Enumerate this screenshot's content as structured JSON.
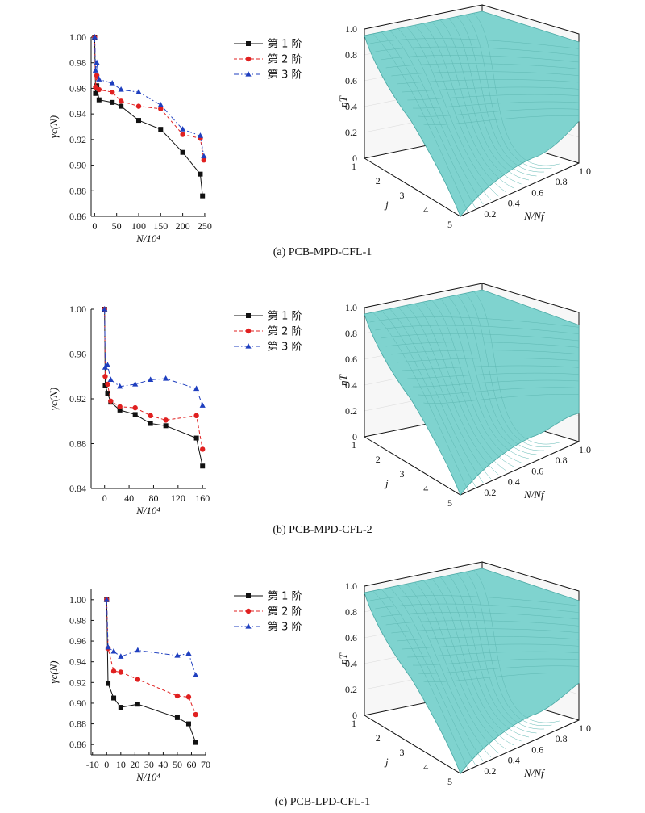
{
  "figure": {
    "panels": [
      {
        "caption": "(a) PCB-MPD-CFL-1",
        "line_chart": {
          "type": "line",
          "ylabel": "γc(N)",
          "xlabel": "N/10⁴",
          "xlim": [
            -8,
            252
          ],
          "ylim": [
            0.86,
            1.0
          ],
          "xticks": [
            0,
            50,
            100,
            150,
            200,
            250
          ],
          "yticks": [
            0.86,
            0.88,
            0.9,
            0.92,
            0.94,
            0.96,
            0.98,
            1.0
          ],
          "ytick_labels": [
            "0.86",
            "0.88",
            "0.90",
            "0.92",
            "0.94",
            "0.96",
            "0.98",
            "1.00"
          ],
          "legend_position": "top-right",
          "series": [
            {
              "name": "第 1 阶",
              "color": "#111111",
              "marker": "square",
              "dash": "solid",
              "x": [
                0,
                2,
                5,
                10,
                40,
                60,
                100,
                150,
                200,
                240,
                245
              ],
              "y": [
                1.0,
                0.956,
                0.962,
                0.951,
                0.949,
                0.946,
                0.935,
                0.928,
                0.91,
                0.893,
                0.876
              ]
            },
            {
              "name": "第 2 阶",
              "color": "#e02020",
              "marker": "circle",
              "dash": "dashed",
              "x": [
                0,
                2,
                5,
                10,
                40,
                60,
                100,
                150,
                200,
                240,
                248
              ],
              "y": [
                1.0,
                0.961,
                0.97,
                0.959,
                0.957,
                0.95,
                0.946,
                0.944,
                0.924,
                0.921,
                0.904
              ]
            },
            {
              "name": "第 3 阶",
              "color": "#1f3fbf",
              "marker": "triangle",
              "dash": "dashdot",
              "x": [
                0,
                2,
                5,
                10,
                40,
                60,
                100,
                150,
                200,
                240,
                248
              ],
              "y": [
                1.0,
                0.974,
                0.98,
                0.967,
                0.964,
                0.959,
                0.957,
                0.947,
                0.928,
                0.923,
                0.907
              ]
            }
          ]
        },
        "surface_chart": {
          "type": "surface",
          "zlabel": "ηT",
          "xlabel": "N/Nf",
          "ylabel": "j",
          "variant": 1
        }
      },
      {
        "caption": "(b) PCB-MPD-CFL-2",
        "line_chart": {
          "type": "line",
          "ylabel": "γc(N)",
          "xlabel": "N/10⁴",
          "xlim": [
            -22,
            165
          ],
          "ylim": [
            0.84,
            1.0
          ],
          "xticks": [
            0,
            40,
            80,
            120,
            160
          ],
          "yticks": [
            0.84,
            0.88,
            0.92,
            0.96,
            1.0
          ],
          "ytick_labels": [
            "0.84",
            "0.88",
            "0.92",
            "0.96",
            "1.00"
          ],
          "legend_position": "top-right",
          "series": [
            {
              "name": "第 1 阶",
              "color": "#111111",
              "marker": "square",
              "dash": "solid",
              "x": [
                0,
                1,
                5,
                10,
                25,
                50,
                75,
                100,
                150,
                160
              ],
              "y": [
                1.0,
                0.932,
                0.925,
                0.917,
                0.91,
                0.906,
                0.898,
                0.896,
                0.885,
                0.86
              ]
            },
            {
              "name": "第 2 阶",
              "color": "#e02020",
              "marker": "circle",
              "dash": "dashed",
              "x": [
                0,
                1,
                5,
                10,
                25,
                50,
                75,
                100,
                150,
                160
              ],
              "y": [
                1.0,
                0.94,
                0.933,
                0.918,
                0.913,
                0.912,
                0.905,
                0.901,
                0.905,
                0.875
              ]
            },
            {
              "name": "第 3 阶",
              "color": "#1f3fbf",
              "marker": "triangle",
              "dash": "dashdot",
              "x": [
                0,
                1,
                5,
                10,
                25,
                50,
                75,
                100,
                150,
                160
              ],
              "y": [
                1.0,
                0.948,
                0.95,
                0.937,
                0.931,
                0.933,
                0.937,
                0.938,
                0.929,
                0.914
              ]
            }
          ]
        },
        "surface_chart": {
          "type": "surface",
          "zlabel": "ηT",
          "xlabel": "N/Nf",
          "ylabel": "j",
          "variant": 2
        }
      },
      {
        "caption": "(c) PCB-LPD-CFL-1",
        "line_chart": {
          "type": "line",
          "ylabel": "γc(N)",
          "xlabel": "N/10⁴",
          "xlim": [
            -11,
            70
          ],
          "ylim": [
            0.85,
            1.01
          ],
          "xticks": [
            -10,
            0,
            10,
            20,
            30,
            40,
            50,
            60,
            70
          ],
          "yticks": [
            0.86,
            0.88,
            0.9,
            0.92,
            0.94,
            0.96,
            0.98,
            1.0
          ],
          "ytick_labels": [
            "0.86",
            "0.88",
            "0.90",
            "0.92",
            "0.94",
            "0.96",
            "0.98",
            "1.00"
          ],
          "legend_position": "top-right",
          "series": [
            {
              "name": "第 1 阶",
              "color": "#111111",
              "marker": "square",
              "dash": "solid",
              "x": [
                0,
                1,
                5,
                10,
                22,
                50,
                58,
                63
              ],
              "y": [
                1.0,
                0.919,
                0.905,
                0.896,
                0.899,
                0.886,
                0.88,
                0.862
              ]
            },
            {
              "name": "第 2 阶",
              "color": "#e02020",
              "marker": "circle",
              "dash": "dashed",
              "x": [
                0,
                1,
                5,
                10,
                22,
                50,
                58,
                63
              ],
              "y": [
                1.0,
                0.953,
                0.931,
                0.93,
                0.923,
                0.907,
                0.906,
                0.889
              ]
            },
            {
              "name": "第 3 阶",
              "color": "#1f3fbf",
              "marker": "triangle",
              "dash": "dashdot",
              "x": [
                0,
                1,
                5,
                10,
                22,
                50,
                58,
                63
              ],
              "y": [
                1.0,
                0.954,
                0.95,
                0.945,
                0.951,
                0.946,
                0.948,
                0.927
              ]
            }
          ]
        },
        "surface_chart": {
          "type": "surface",
          "zlabel": "ηT",
          "xlabel": "N/Nf",
          "ylabel": "j",
          "variant": 3
        }
      }
    ],
    "surface_ticks": {
      "z": [
        "0",
        "0.2",
        "0.4",
        "0.6",
        "0.8",
        "1.0"
      ],
      "j": [
        "1",
        "2",
        "3",
        "4",
        "5"
      ],
      "nf": [
        "0.2",
        "0.4",
        "0.6",
        "0.8",
        "1.0"
      ]
    },
    "surface_color": "#7fd3cf"
  },
  "chart_data": [
    {
      "type": "line",
      "title": "(a) PCB-MPD-CFL-1",
      "xlabel": "N/10⁴",
      "ylabel": "γc(N)",
      "ylim": [
        0.86,
        1.0
      ],
      "series": [
        {
          "name": "第 1 阶",
          "x": [
            0,
            2,
            5,
            10,
            40,
            60,
            100,
            150,
            200,
            240,
            245
          ],
          "values": [
            1.0,
            0.956,
            0.962,
            0.951,
            0.949,
            0.946,
            0.935,
            0.928,
            0.91,
            0.893,
            0.876
          ]
        },
        {
          "name": "第 2 阶",
          "x": [
            0,
            2,
            5,
            10,
            40,
            60,
            100,
            150,
            200,
            240,
            248
          ],
          "values": [
            1.0,
            0.961,
            0.97,
            0.959,
            0.957,
            0.95,
            0.946,
            0.944,
            0.924,
            0.921,
            0.904
          ]
        },
        {
          "name": "第 3 阶",
          "x": [
            0,
            2,
            5,
            10,
            40,
            60,
            100,
            150,
            200,
            240,
            248
          ],
          "values": [
            1.0,
            0.974,
            0.98,
            0.967,
            0.964,
            0.959,
            0.957,
            0.947,
            0.928,
            0.923,
            0.907
          ]
        }
      ]
    },
    {
      "type": "line",
      "title": "(b) PCB-MPD-CFL-2",
      "xlabel": "N/10⁴",
      "ylabel": "γc(N)",
      "ylim": [
        0.84,
        1.0
      ],
      "series": [
        {
          "name": "第 1 阶",
          "x": [
            0,
            1,
            5,
            10,
            25,
            50,
            75,
            100,
            150,
            160
          ],
          "values": [
            1.0,
            0.932,
            0.925,
            0.917,
            0.91,
            0.906,
            0.898,
            0.896,
            0.885,
            0.86
          ]
        },
        {
          "name": "第 2 阶",
          "x": [
            0,
            1,
            5,
            10,
            25,
            50,
            75,
            100,
            150,
            160
          ],
          "values": [
            1.0,
            0.94,
            0.933,
            0.918,
            0.913,
            0.912,
            0.905,
            0.901,
            0.905,
            0.875
          ]
        },
        {
          "name": "第 3 阶",
          "x": [
            0,
            1,
            5,
            10,
            25,
            50,
            75,
            100,
            150,
            160
          ],
          "values": [
            1.0,
            0.948,
            0.95,
            0.937,
            0.931,
            0.933,
            0.937,
            0.938,
            0.929,
            0.914
          ]
        }
      ]
    },
    {
      "type": "line",
      "title": "(c) PCB-LPD-CFL-1",
      "xlabel": "N/10⁴",
      "ylabel": "γc(N)",
      "ylim": [
        0.85,
        1.01
      ],
      "series": [
        {
          "name": "第 1 阶",
          "x": [
            0,
            1,
            5,
            10,
            22,
            50,
            58,
            63
          ],
          "values": [
            1.0,
            0.919,
            0.905,
            0.896,
            0.899,
            0.886,
            0.88,
            0.862
          ]
        },
        {
          "name": "第 2 阶",
          "x": [
            0,
            1,
            5,
            10,
            22,
            50,
            58,
            63
          ],
          "values": [
            1.0,
            0.953,
            0.931,
            0.93,
            0.923,
            0.907,
            0.906,
            0.889
          ]
        },
        {
          "name": "第 3 阶",
          "x": [
            0,
            1,
            5,
            10,
            22,
            50,
            58,
            63
          ],
          "values": [
            1.0,
            0.954,
            0.95,
            0.945,
            0.951,
            0.946,
            0.948,
            0.927
          ]
        }
      ]
    }
  ]
}
